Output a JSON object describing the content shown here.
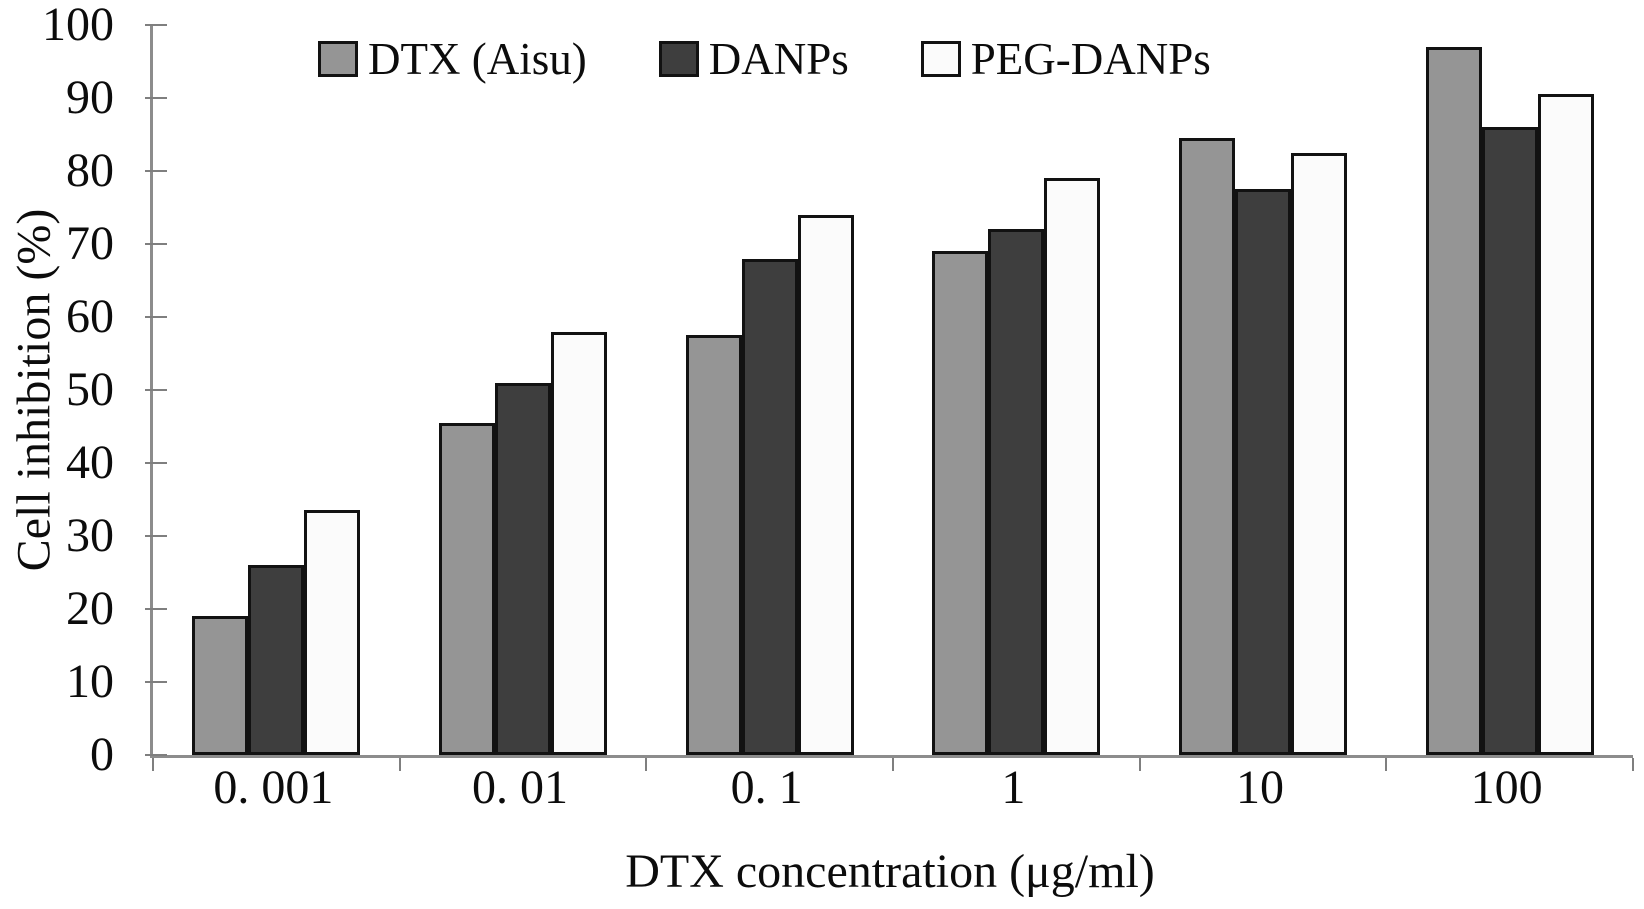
{
  "chart_data": {
    "type": "bar",
    "title": "",
    "xlabel": "DTX concentration (μg/ml)",
    "ylabel": "Cell inhibition (%)",
    "categories": [
      "0. 001",
      "0. 01",
      "0. 1",
      "1",
      "10",
      "100"
    ],
    "series": [
      {
        "name": "DTX (Aisu)",
        "color": "#959595",
        "values": [
          19,
          45.5,
          57.5,
          69,
          84.5,
          97
        ]
      },
      {
        "name": "DANPs",
        "color": "#3e3e3e",
        "values": [
          26,
          51,
          68,
          72,
          77.5,
          86
        ]
      },
      {
        "name": "PEG-DANPs",
        "color": "#fbfbfb",
        "values": [
          33.5,
          58,
          74,
          79,
          82.5,
          90.5
        ]
      }
    ],
    "y_ticks": [
      0,
      10,
      20,
      30,
      40,
      50,
      60,
      70,
      80,
      90,
      100
    ],
    "ylim": [
      0,
      100
    ],
    "grid": false,
    "legend_position": "top-inside",
    "bar_border_color": "#121212",
    "axis_color": "#8c8c8c",
    "background_color": "#ffffff"
  }
}
